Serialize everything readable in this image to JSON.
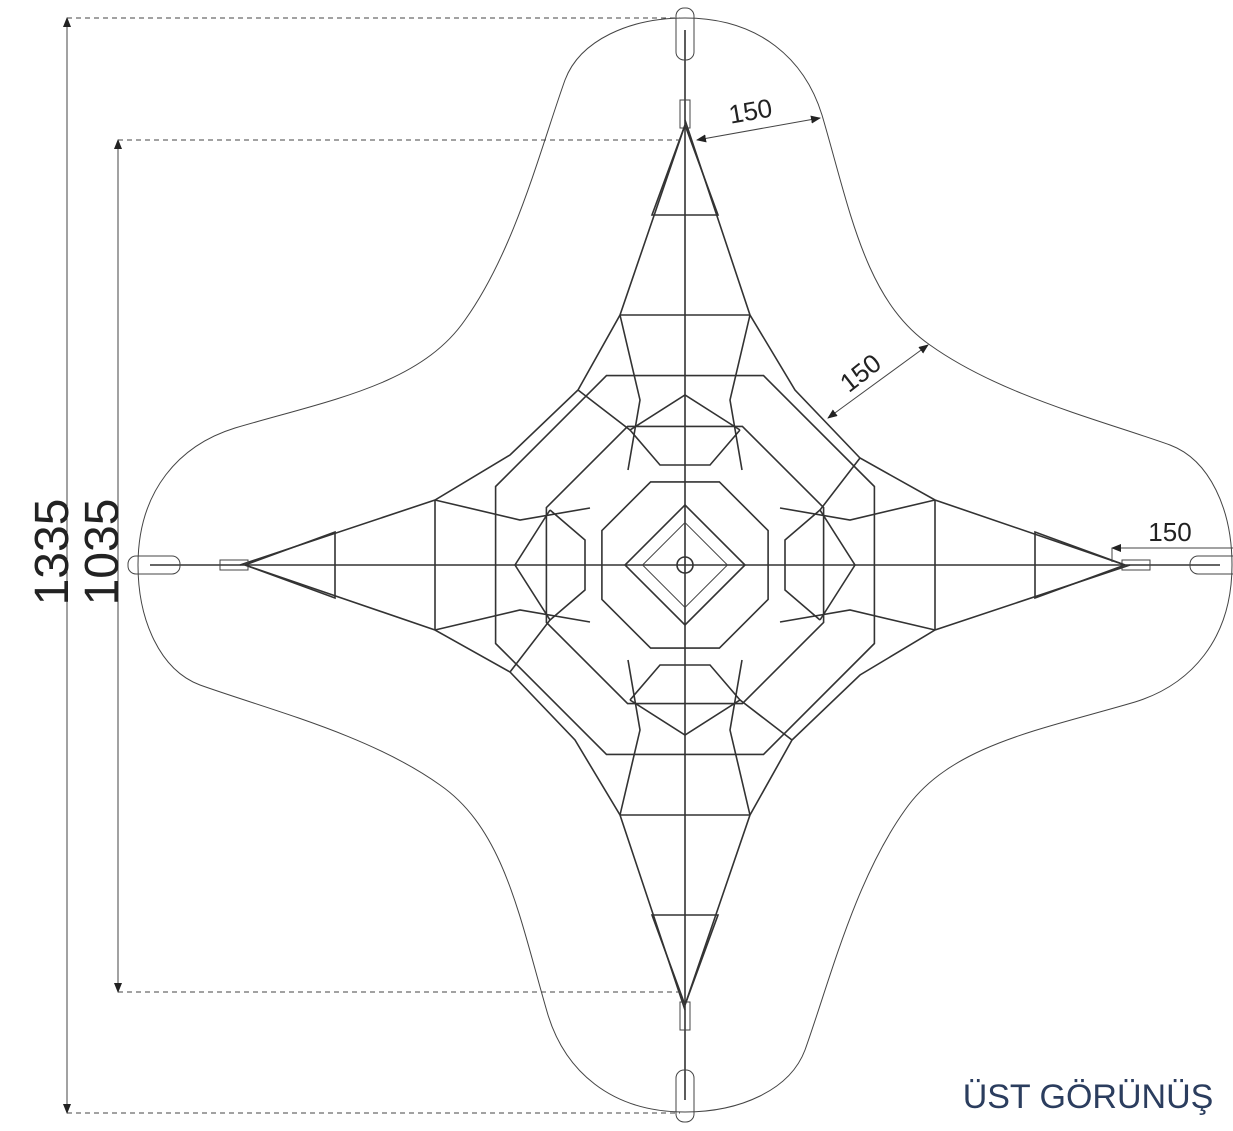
{
  "dimensions": {
    "overall": 1335,
    "net": 1035,
    "clearance": [
      150,
      150,
      150
    ]
  },
  "caption": "ÜST GÖRÜNÜŞ"
}
